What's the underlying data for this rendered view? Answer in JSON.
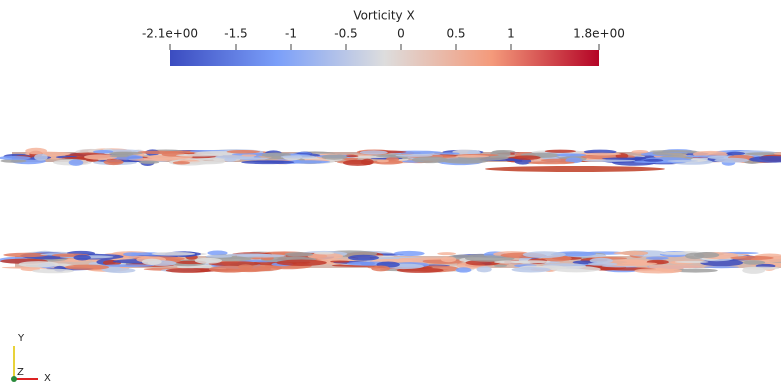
{
  "colorbar": {
    "title": "Vorticity X",
    "range": [
      -2.1,
      1.8
    ],
    "ticks": [
      {
        "value": -2.1,
        "label": "-2.1e+00"
      },
      -1.5,
      -1,
      -0.5,
      0,
      0.5,
      1,
      {
        "value": 1.8,
        "label": "1.8e+00"
      }
    ]
  },
  "axes": {
    "y": "Y",
    "z": "Z",
    "x": "X"
  }
}
